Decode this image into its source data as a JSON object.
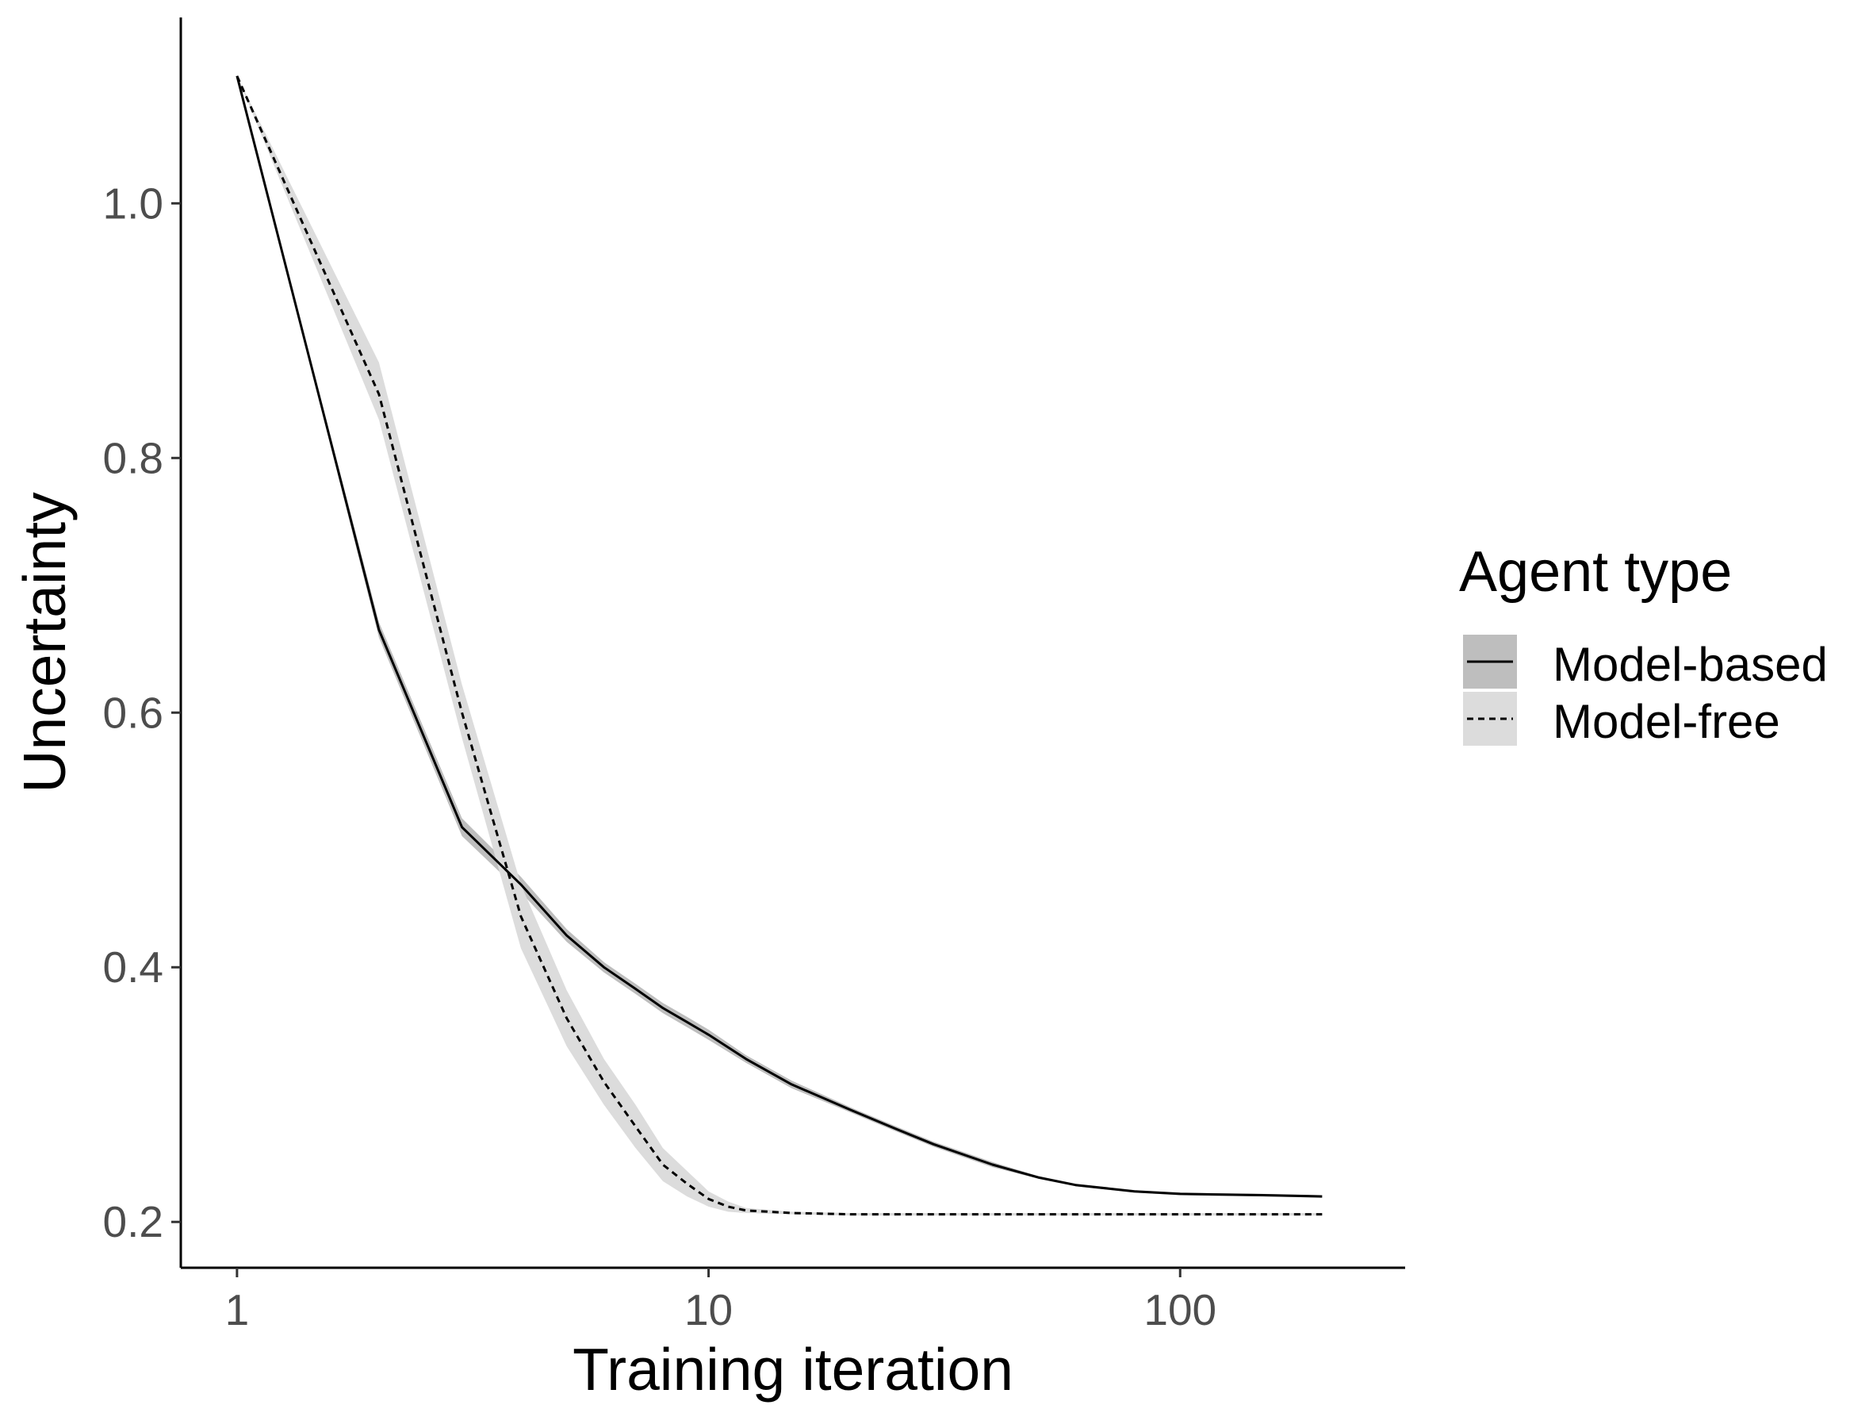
{
  "chart_data": {
    "type": "line",
    "xlabel": "Training iteration",
    "ylabel": "Uncertainty",
    "x_scale": "log10",
    "xlim": [
      0.76,
      300
    ],
    "ylim": [
      0.164,
      1.146
    ],
    "x_ticks": [
      1,
      10,
      100
    ],
    "x_tick_labels": [
      "1",
      "10",
      "100"
    ],
    "y_ticks": [
      0.2,
      0.4,
      0.6,
      0.8,
      1.0
    ],
    "y_tick_labels": [
      "0.2",
      "0.4",
      "0.6",
      "0.8",
      "1.0"
    ],
    "grid": false,
    "legend": {
      "title": "Agent type",
      "position": "right",
      "entries": [
        "Model-based",
        "Model-free"
      ]
    },
    "series": [
      {
        "name": "Model-based",
        "line_style": "solid",
        "band_color": "#bebebe",
        "x": [
          1,
          2,
          3,
          4,
          5,
          6,
          7,
          8,
          9,
          10,
          12,
          15,
          20,
          25,
          30,
          40,
          50,
          60,
          80,
          100,
          150,
          200
        ],
        "y": [
          1.1,
          0.665,
          0.51,
          0.465,
          0.425,
          0.4,
          0.383,
          0.368,
          0.357,
          0.347,
          0.328,
          0.308,
          0.288,
          0.273,
          0.261,
          0.245,
          0.235,
          0.229,
          0.224,
          0.222,
          0.221,
          0.22
        ],
        "lower": [
          1.1,
          0.659,
          0.503,
          0.459,
          0.42,
          0.396,
          0.379,
          0.364,
          0.353,
          0.343,
          0.325,
          0.305,
          0.286,
          0.271,
          0.259,
          0.243,
          0.234,
          0.228,
          0.223,
          0.221,
          0.22,
          0.219
        ],
        "upper": [
          1.1,
          0.671,
          0.517,
          0.471,
          0.43,
          0.404,
          0.387,
          0.372,
          0.361,
          0.351,
          0.331,
          0.311,
          0.29,
          0.275,
          0.263,
          0.247,
          0.236,
          0.23,
          0.225,
          0.223,
          0.222,
          0.221
        ]
      },
      {
        "name": "Model-free",
        "line_style": "dashed",
        "band_color": "#dcdcdc",
        "x": [
          1,
          2,
          3,
          4,
          5,
          6,
          7,
          8,
          9,
          10,
          11,
          12,
          15,
          20,
          30,
          50,
          100,
          200
        ],
        "y": [
          1.1,
          0.85,
          0.6,
          0.44,
          0.36,
          0.31,
          0.275,
          0.245,
          0.23,
          0.218,
          0.212,
          0.209,
          0.207,
          0.206,
          0.206,
          0.206,
          0.206,
          0.206
        ],
        "lower": [
          1.1,
          0.83,
          0.58,
          0.415,
          0.338,
          0.292,
          0.258,
          0.232,
          0.22,
          0.212,
          0.208,
          0.207,
          0.206,
          0.205,
          0.205,
          0.205,
          0.205,
          0.205
        ],
        "upper": [
          1.1,
          0.875,
          0.622,
          0.465,
          0.382,
          0.328,
          0.292,
          0.258,
          0.24,
          0.224,
          0.216,
          0.211,
          0.208,
          0.207,
          0.207,
          0.207,
          0.207,
          0.207
        ]
      }
    ]
  }
}
